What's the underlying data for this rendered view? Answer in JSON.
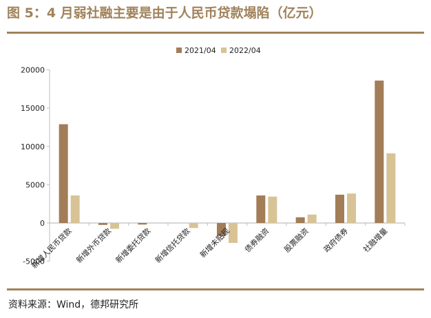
{
  "header": {
    "title": "图 5：4 月弱社融主要是由于人民币贷款塌陷（亿元）"
  },
  "footer": {
    "source": "资料来源：Wind，德邦研究所"
  },
  "colors": {
    "brand": "#a0825a",
    "series_2021": "#a27d57",
    "series_2022": "#d8c397",
    "axis": "#bfbfbf"
  },
  "chart_data": {
    "type": "bar",
    "title": "",
    "xlabel": "",
    "ylabel": "",
    "categories": [
      "新增人民币贷款",
      "新增外币贷款",
      "新增委托贷款",
      "新增信托贷款",
      "新增未贴现",
      "债券融资",
      "股票融资",
      "政府债券",
      "社融增量"
    ],
    "series": [
      {
        "name": "2021/04",
        "color": "#a27d57",
        "values": [
          12900,
          -250,
          -200,
          0,
          -1700,
          3600,
          750,
          3700,
          18600
        ]
      },
      {
        "name": "2022/04",
        "color": "#d8c397",
        "values": [
          3600,
          -750,
          0,
          -650,
          -2600,
          3450,
          1100,
          3850,
          9100
        ]
      }
    ],
    "ylim": [
      -5000,
      20000
    ],
    "yticks": [
      -5000,
      0,
      5000,
      10000,
      15000,
      20000
    ],
    "ytick_labels": [
      "-5000",
      "0",
      "5000",
      "10000",
      "15000",
      "20000"
    ],
    "grid": false,
    "legend": "top-center"
  }
}
